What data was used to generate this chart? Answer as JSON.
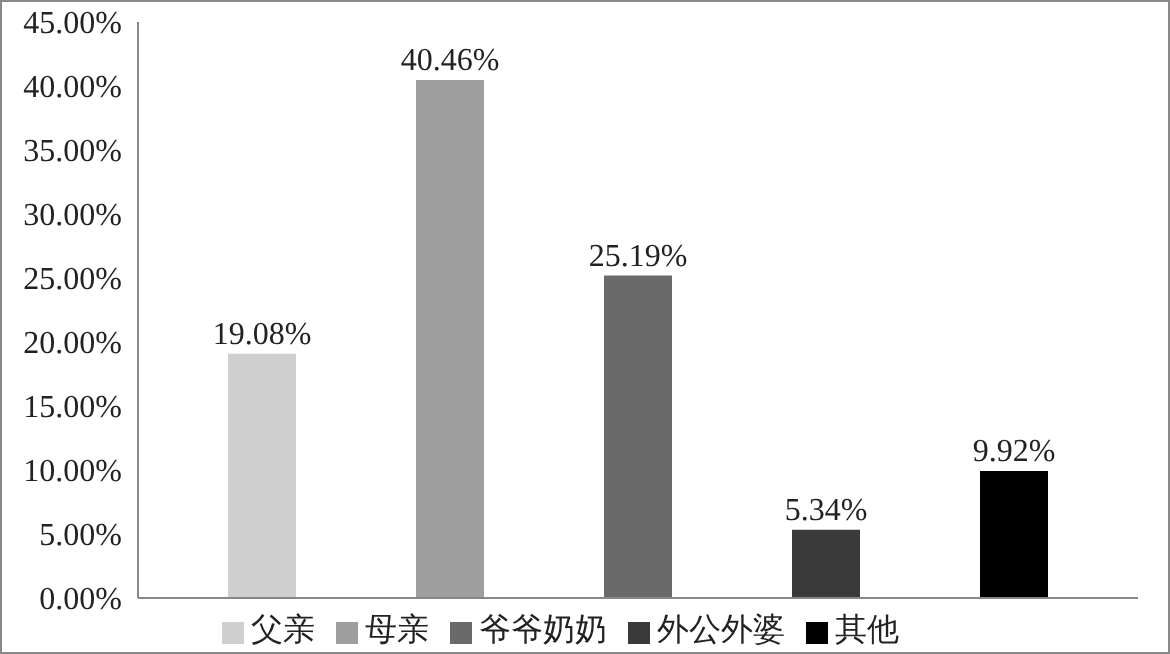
{
  "chart_data": {
    "type": "bar",
    "categories": [
      null
    ],
    "series": [
      {
        "name": "父亲",
        "color": "#cfcfcf",
        "values": [
          19.08
        ],
        "value_labels": [
          "19.08%"
        ]
      },
      {
        "name": "母亲",
        "color": "#9e9e9e",
        "values": [
          40.46
        ],
        "value_labels": [
          "40.46%"
        ]
      },
      {
        "name": "爷爷奶奶",
        "color": "#6a6a6a",
        "values": [
          25.19
        ],
        "value_labels": [
          "25.19%"
        ]
      },
      {
        "name": "外公外婆",
        "color": "#3a3a3a",
        "values": [
          5.34
        ],
        "value_labels": [
          "5.34%"
        ]
      },
      {
        "name": "其他",
        "color": "#000000",
        "values": [
          9.92
        ],
        "value_labels": [
          "9.92%"
        ]
      }
    ],
    "ylim": [
      0,
      45
    ],
    "yticks": [
      {
        "value": 0,
        "label": "0.00%"
      },
      {
        "value": 5,
        "label": "5.00%"
      },
      {
        "value": 10,
        "label": "10.00%"
      },
      {
        "value": 15,
        "label": "15.00%"
      },
      {
        "value": 20,
        "label": "20.00%"
      },
      {
        "value": 25,
        "label": "25.00%"
      },
      {
        "value": 30,
        "label": "30.00%"
      },
      {
        "value": 35,
        "label": "35.00%"
      },
      {
        "value": 40,
        "label": "40.00%"
      },
      {
        "value": 45,
        "label": "45.00%"
      }
    ],
    "grid": false,
    "legend": "bottom"
  }
}
